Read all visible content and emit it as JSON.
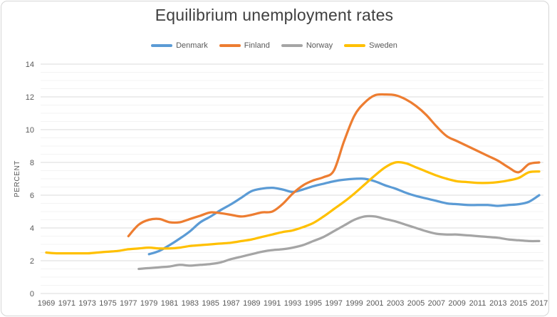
{
  "title": "Equilibrium unemployment rates",
  "chart_data": {
    "type": "line",
    "title": "Equilibrium unemployment rates",
    "ylabel": "PERCENT",
    "ylim": [
      0,
      14
    ],
    "y_tick_step": 2,
    "y_minor_step": 0.5,
    "x_first_year": 1969,
    "x_last_year": 2017,
    "x_tick_years": [
      1969,
      1971,
      1973,
      1975,
      1977,
      1979,
      1981,
      1983,
      1985,
      1987,
      1989,
      1991,
      1993,
      1995,
      1997,
      1999,
      2001,
      2003,
      2005,
      2007,
      2009,
      2011,
      2013,
      2015,
      2017
    ],
    "grid": "horizontal major+minor",
    "legend_position": "top-center",
    "line_style": "smooth",
    "series": [
      {
        "name": "Denmark",
        "color": "#5B9BD5",
        "start_year": 1979,
        "values": [
          2.4,
          2.6,
          2.95,
          3.35,
          3.8,
          4.35,
          4.7,
          5.1,
          5.45,
          5.85,
          6.25,
          6.4,
          6.45,
          6.35,
          6.2,
          6.35,
          6.55,
          6.7,
          6.85,
          6.95,
          7.0,
          7.0,
          6.85,
          6.6,
          6.4,
          6.15,
          5.95,
          5.8,
          5.65,
          5.5,
          5.45,
          5.4,
          5.4,
          5.4,
          5.35,
          5.4,
          5.45,
          5.6,
          6.0
        ]
      },
      {
        "name": "Finland",
        "color": "#ED7D31",
        "start_year": 1977,
        "values": [
          3.5,
          4.2,
          4.5,
          4.55,
          4.35,
          4.35,
          4.55,
          4.75,
          4.95,
          4.9,
          4.8,
          4.7,
          4.8,
          4.95,
          5.0,
          5.45,
          6.1,
          6.6,
          6.9,
          7.1,
          7.5,
          9.3,
          10.85,
          11.65,
          12.1,
          12.15,
          12.1,
          11.85,
          11.45,
          10.9,
          10.2,
          9.6,
          9.3,
          9.0,
          8.7,
          8.4,
          8.1,
          7.7,
          7.4,
          7.9,
          8.0
        ]
      },
      {
        "name": "Norway",
        "color": "#A5A5A5",
        "start_year": 1978,
        "values": [
          1.5,
          1.55,
          1.6,
          1.65,
          1.75,
          1.7,
          1.75,
          1.8,
          1.9,
          2.1,
          2.25,
          2.4,
          2.55,
          2.65,
          2.7,
          2.8,
          2.95,
          3.2,
          3.45,
          3.8,
          4.15,
          4.5,
          4.7,
          4.7,
          4.55,
          4.4,
          4.2,
          4.0,
          3.8,
          3.65,
          3.6,
          3.6,
          3.55,
          3.5,
          3.45,
          3.4,
          3.3,
          3.25,
          3.2,
          3.2
        ]
      },
      {
        "name": "Sweden",
        "color": "#FFC000",
        "start_year": 1969,
        "values": [
          2.5,
          2.45,
          2.45,
          2.45,
          2.45,
          2.5,
          2.55,
          2.6,
          2.7,
          2.75,
          2.8,
          2.75,
          2.75,
          2.8,
          2.9,
          2.95,
          3.0,
          3.05,
          3.1,
          3.2,
          3.3,
          3.45,
          3.6,
          3.75,
          3.85,
          4.05,
          4.3,
          4.7,
          5.15,
          5.6,
          6.1,
          6.65,
          7.2,
          7.7,
          8.0,
          7.95,
          7.7,
          7.45,
          7.2,
          7.0,
          6.85,
          6.8,
          6.75,
          6.75,
          6.8,
          6.9,
          7.05,
          7.4,
          7.45
        ]
      }
    ]
  },
  "colors": {
    "title_text": "#404040",
    "axis_text": "#595959",
    "major_grid": "#DBDBDB",
    "minor_grid": "#F3F3F3",
    "chart_border": "#D6D6D6",
    "background": "#FFFFFF"
  }
}
